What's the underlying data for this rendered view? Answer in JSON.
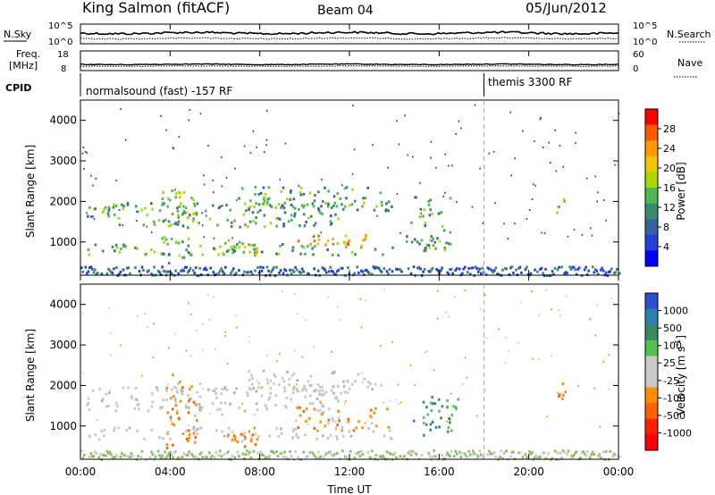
{
  "header": {
    "station": "King Salmon (fitACF)",
    "beam": "Beam 04",
    "date": "05/Jun/2012"
  },
  "top_panels": {
    "nsky_label": "N.Sky",
    "nsky_ticks": [
      "10^5",
      "10^0"
    ],
    "nsearch_label": "N.Search",
    "nsearch_ticks": [
      "10^5",
      "10^0"
    ],
    "freq_label": "Freq.",
    "freq_unit": "[MHz]",
    "freq_ticks": [
      "18",
      "8"
    ],
    "nave_label": "Nave",
    "nave_ticks": [
      "60",
      "0"
    ],
    "cpid_label": "CPID",
    "cpid_segments": [
      {
        "label": "normalsound (fast) -157 RF",
        "start_hour": 0
      },
      {
        "label": "themis 3300 RF",
        "start_hour": 18
      }
    ]
  },
  "axes": {
    "x_label": "Time UT",
    "x_ticks": [
      "00:00",
      "04:00",
      "08:00",
      "12:00",
      "16:00",
      "20:00",
      "00:00"
    ],
    "y_label": "Slant Range [km]",
    "y_ticks": [
      "4000",
      "3000",
      "2000",
      "1000"
    ]
  },
  "colorbars": {
    "power": {
      "label": "Power [dB]",
      "ticks": [
        "28",
        "24",
        "20",
        "16",
        "12",
        "8",
        "4"
      ],
      "colors": [
        "#ff0000",
        "#ff5a00",
        "#ff9900",
        "#f0c800",
        "#a8d800",
        "#50b850",
        "#3a8a70",
        "#3464a0",
        "#2040d8",
        "#0000ff"
      ]
    },
    "velocity": {
      "label": "Velocity [m s",
      "label_exp": "-1",
      "label_end": "]",
      "ticks": [
        "1000",
        "500",
        "100",
        "25",
        "-25",
        "-100",
        "-500",
        "-1000"
      ],
      "colors": [
        "#2c4fd0",
        "#2c7fb0",
        "#3a8a60",
        "#50c050",
        "#c8c8c8",
        "#c8c8c8",
        "#ff8c00",
        "#ff6000",
        "#ff2000",
        "#ff0000"
      ]
    }
  },
  "chart_data": {
    "type": "heatmap",
    "x_range_hours": [
      0,
      24
    ],
    "y_range_km": [
      180,
      4500
    ],
    "cpid_change_hour": 18,
    "power_regions": [
      {
        "t0": 0.3,
        "t1": 14.0,
        "r0": 700,
        "r1": 1000,
        "level": 4
      },
      {
        "t0": 0.2,
        "t1": 11.5,
        "r0": 1400,
        "r1": 2000,
        "level": 4
      },
      {
        "t0": 7.0,
        "t1": 14.0,
        "r0": 1800,
        "r1": 2400,
        "level": 4
      },
      {
        "t0": 3.5,
        "t1": 5.0,
        "r0": 500,
        "r1": 2300,
        "level": 5
      },
      {
        "t0": 6.0,
        "t1": 8.0,
        "r0": 700,
        "r1": 1100,
        "level": 6
      },
      {
        "t0": 9.5,
        "t1": 13.0,
        "r0": 900,
        "r1": 1200,
        "level": 7
      },
      {
        "t0": 14.5,
        "t1": 16.5,
        "r0": 800,
        "r1": 2200,
        "level": 4
      },
      {
        "t0": 15.5,
        "t1": 16.2,
        "r0": 850,
        "r1": 1100,
        "level": 7
      },
      {
        "t0": 21.0,
        "t1": 21.6,
        "r0": 1700,
        "r1": 2100,
        "level": 5
      }
    ],
    "velocity_regions": [
      {
        "t0": 0.3,
        "t1": 14.0,
        "r0": 700,
        "r1": 1000,
        "vel": 0
      },
      {
        "t0": 0.2,
        "t1": 11.5,
        "r0": 1400,
        "r1": 2000,
        "vel": 0
      },
      {
        "t0": 7.0,
        "t1": 13.5,
        "r0": 1800,
        "r1": 2400,
        "vel": 0
      },
      {
        "t0": 3.8,
        "t1": 5.2,
        "r0": 450,
        "r1": 2300,
        "vel": -300
      },
      {
        "t0": 6.5,
        "t1": 8.0,
        "r0": 500,
        "r1": 1000,
        "vel": -300
      },
      {
        "t0": 9.5,
        "t1": 13.8,
        "r0": 900,
        "r1": 1500,
        "vel": -300
      },
      {
        "t0": 14.8,
        "t1": 16.8,
        "r0": 800,
        "r1": 1800,
        "vel": 100
      },
      {
        "t0": 21.2,
        "t1": 21.8,
        "r0": 1700,
        "r1": 2100,
        "vel": -300
      }
    ]
  }
}
